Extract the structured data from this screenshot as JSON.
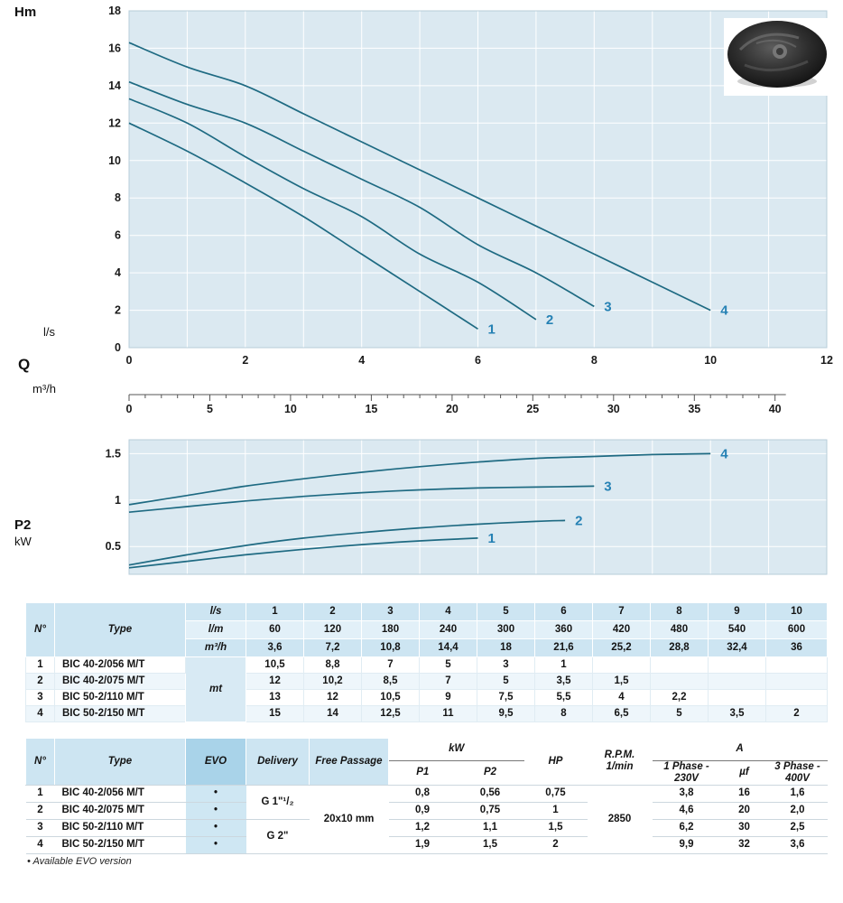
{
  "labels": {
    "hm": "Hm",
    "q": "Q",
    "ls": "l/s",
    "m3h": "m³/h",
    "p2": "P2",
    "kw": "kW"
  },
  "colors": {
    "plot_bg": "#dbe9f1",
    "grid": "#ffffff",
    "plot_border": "#b7cdd9",
    "curve": "#1e6a82",
    "curve_label": "#2581b4",
    "axis_text": "#1a1a1a"
  },
  "chart_data": [
    {
      "type": "line",
      "title": "Head vs flow curves",
      "ylabel": "Hm",
      "xlabel": "Q",
      "x_units": [
        "l/s",
        "m³/h"
      ],
      "xlim": [
        0,
        12
      ],
      "ylim": [
        0,
        18
      ],
      "x_ticks": [
        0,
        2,
        4,
        6,
        8,
        10,
        12
      ],
      "y_ticks": [
        0,
        2,
        4,
        6,
        8,
        10,
        12,
        14,
        16,
        18
      ],
      "x2_ticks": [
        0,
        5,
        10,
        15,
        20,
        25,
        30,
        35,
        40
      ],
      "x2_scale": 3.6,
      "grid": true,
      "legend_position": "curve-end-labels",
      "series": [
        {
          "name": "1",
          "points": [
            [
              0,
              12
            ],
            [
              1,
              10.5
            ],
            [
              2,
              8.8
            ],
            [
              3,
              7
            ],
            [
              4,
              5
            ],
            [
              5,
              3
            ],
            [
              6,
              1
            ]
          ]
        },
        {
          "name": "2",
          "points": [
            [
              0,
              13.3
            ],
            [
              1,
              12
            ],
            [
              2,
              10.2
            ],
            [
              3,
              8.5
            ],
            [
              4,
              7
            ],
            [
              5,
              5
            ],
            [
              6,
              3.5
            ],
            [
              7,
              1.5
            ]
          ]
        },
        {
          "name": "3",
          "points": [
            [
              0,
              14.2
            ],
            [
              1,
              13
            ],
            [
              2,
              12
            ],
            [
              3,
              10.5
            ],
            [
              4,
              9
            ],
            [
              5,
              7.5
            ],
            [
              6,
              5.5
            ],
            [
              7,
              4
            ],
            [
              8,
              2.2
            ]
          ]
        },
        {
          "name": "4",
          "points": [
            [
              0,
              16.3
            ],
            [
              1,
              15
            ],
            [
              2,
              14
            ],
            [
              3,
              12.5
            ],
            [
              4,
              11
            ],
            [
              5,
              9.5
            ],
            [
              6,
              8
            ],
            [
              7,
              6.5
            ],
            [
              8,
              5
            ],
            [
              9,
              3.5
            ],
            [
              10,
              2
            ]
          ]
        }
      ]
    },
    {
      "type": "line",
      "title": "Absorbed power P2 vs flow curves",
      "ylabel": "P2 kW",
      "xlim": [
        0,
        12
      ],
      "ylim": [
        0.2,
        1.65
      ],
      "y_ticks": [
        0.5,
        1,
        1.5
      ],
      "grid": true,
      "legend_position": "curve-end-labels",
      "series": [
        {
          "name": "1",
          "points": [
            [
              0,
              0.27
            ],
            [
              1,
              0.34
            ],
            [
              2,
              0.41
            ],
            [
              3,
              0.47
            ],
            [
              4,
              0.52
            ],
            [
              5,
              0.56
            ],
            [
              6,
              0.59
            ]
          ]
        },
        {
          "name": "2",
          "points": [
            [
              0,
              0.3
            ],
            [
              1,
              0.41
            ],
            [
              2,
              0.51
            ],
            [
              3,
              0.59
            ],
            [
              4,
              0.65
            ],
            [
              5,
              0.7
            ],
            [
              6,
              0.74
            ],
            [
              7,
              0.77
            ],
            [
              7.5,
              0.78
            ]
          ]
        },
        {
          "name": "3",
          "points": [
            [
              0,
              0.87
            ],
            [
              1,
              0.93
            ],
            [
              2,
              0.99
            ],
            [
              3,
              1.04
            ],
            [
              4,
              1.08
            ],
            [
              5,
              1.11
            ],
            [
              6,
              1.13
            ],
            [
              7,
              1.14
            ],
            [
              8,
              1.15
            ]
          ]
        },
        {
          "name": "4",
          "points": [
            [
              0,
              0.95
            ],
            [
              1,
              1.05
            ],
            [
              2,
              1.15
            ],
            [
              3,
              1.23
            ],
            [
              4,
              1.3
            ],
            [
              5,
              1.36
            ],
            [
              6,
              1.41
            ],
            [
              7,
              1.45
            ],
            [
              8,
              1.47
            ],
            [
              9,
              1.49
            ],
            [
              10,
              1.5
            ]
          ]
        }
      ]
    }
  ],
  "table1": {
    "corner": {
      "no": "N°",
      "type": "Type"
    },
    "unit_rows": [
      {
        "unit": "l/s",
        "values": [
          "1",
          "2",
          "3",
          "4",
          "5",
          "6",
          "7",
          "8",
          "9",
          "10"
        ]
      },
      {
        "unit": "l/m",
        "values": [
          "60",
          "120",
          "180",
          "240",
          "300",
          "360",
          "420",
          "480",
          "540",
          "600"
        ]
      },
      {
        "unit": "m³/h",
        "values": [
          "3,6",
          "7,2",
          "10,8",
          "14,4",
          "18",
          "21,6",
          "25,2",
          "28,8",
          "32,4",
          "36"
        ]
      }
    ],
    "body_unit": "mt",
    "rows": [
      {
        "no": "1",
        "type": "BIC 40-2/056  M/T",
        "values": [
          "10,5",
          "8,8",
          "7",
          "5",
          "3",
          "1",
          "",
          "",
          "",
          ""
        ]
      },
      {
        "no": "2",
        "type": "BIC 40-2/075  M/T",
        "values": [
          "12",
          "10,2",
          "8,5",
          "7",
          "5",
          "3,5",
          "1,5",
          "",
          "",
          ""
        ]
      },
      {
        "no": "3",
        "type": "BIC 50-2/110  M/T",
        "values": [
          "13",
          "12",
          "10,5",
          "9",
          "7,5",
          "5,5",
          "4",
          "2,2",
          "",
          ""
        ]
      },
      {
        "no": "4",
        "type": "BIC 50-2/150  M/T",
        "values": [
          "15",
          "14",
          "12,5",
          "11",
          "9,5",
          "8",
          "6,5",
          "5",
          "3,5",
          "2"
        ]
      }
    ]
  },
  "table2": {
    "headers": {
      "no": "N°",
      "type": "Type",
      "evo": "EVO",
      "delivery": "Delivery",
      "free_passage": "Free Passage",
      "kw_group": "kW",
      "p1": "P1",
      "p2": "P2",
      "hp": "HP",
      "rpm": "R.P.M.\n1/min",
      "a_group": "A",
      "phase1": "1 Phase -\n230V",
      "uf": "µf",
      "phase3": "3 Phase -\n400V"
    },
    "delivery_groups": [
      {
        "label": "G 1\"¹/₂",
        "span": 2
      },
      {
        "label": "G 2\"",
        "span": 2
      }
    ],
    "free_passage_value": "20x10 mm",
    "rpm_value": "2850",
    "rows": [
      {
        "no": "1",
        "type": "BIC 40-2/056  M/T",
        "evo": "•",
        "p1": "0,8",
        "p2": "0,56",
        "hp": "0,75",
        "a_230": "3,8",
        "uf": "16",
        "a_400": "1,6"
      },
      {
        "no": "2",
        "type": "BIC 40-2/075  M/T",
        "evo": "•",
        "p1": "0,9",
        "p2": "0,75",
        "hp": "1",
        "a_230": "4,6",
        "uf": "20",
        "a_400": "2,0"
      },
      {
        "no": "3",
        "type": "BIC 50-2/110  M/T",
        "evo": "•",
        "p1": "1,2",
        "p2": "1,1",
        "hp": "1,5",
        "a_230": "6,2",
        "uf": "30",
        "a_400": "2,5"
      },
      {
        "no": "4",
        "type": "BIC 50-2/150  M/T",
        "evo": "•",
        "p1": "1,9",
        "p2": "1,5",
        "hp": "2",
        "a_230": "9,9",
        "uf": "32",
        "a_400": "3,6"
      }
    ]
  },
  "footnote": "• Available EVO version"
}
